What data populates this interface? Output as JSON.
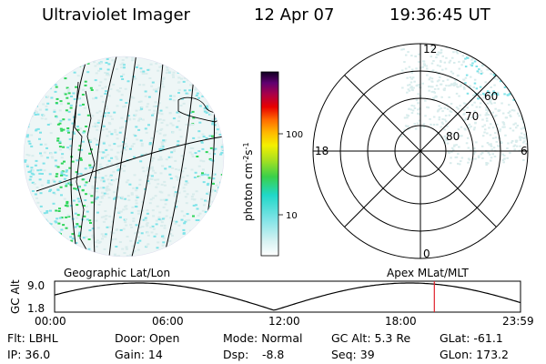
{
  "header": {
    "title": "Ultraviolet Imager",
    "date": "12 Apr 07",
    "time": "19:36:45 UT"
  },
  "panels": {
    "left_label": "Geographic Lat/Lon",
    "right_label": "Apex MLat/MLT"
  },
  "colorbar": {
    "unit_label": "photon cm-2s-1",
    "ticks": [
      "100",
      "10"
    ]
  },
  "polar_plot": {
    "mlt_labels": [
      "12",
      "18",
      "6",
      "0"
    ],
    "mlat_labels": [
      "60",
      "70",
      "80"
    ]
  },
  "altitude_plot": {
    "axis_label": "GC Alt",
    "y_ticks": [
      "9.0",
      "1.8"
    ],
    "x_ticks": [
      "00:00",
      "06:00",
      "12:00",
      "18:00",
      "23:59"
    ],
    "current_time_fraction": 0.815
  },
  "info": {
    "col1": [
      "Flt: LBHL",
      "IP: 36.0"
    ],
    "col2": [
      "Door: Open",
      "Gain: 14"
    ],
    "col3a": [
      "Mode: Normal",
      "Dsp:"
    ],
    "col3b": "-8.8",
    "col4": [
      "GC Alt: 5.3 Re",
      "Seq: 39"
    ],
    "col5": [
      "GLat: -61.1",
      "GLon: 173.2"
    ]
  },
  "colors": {
    "aurora_cyan": "#7fe3e8",
    "aurora_green": "#2fd55a",
    "pale_teal": "#d8ecec",
    "marker_red": "#e0202a"
  }
}
